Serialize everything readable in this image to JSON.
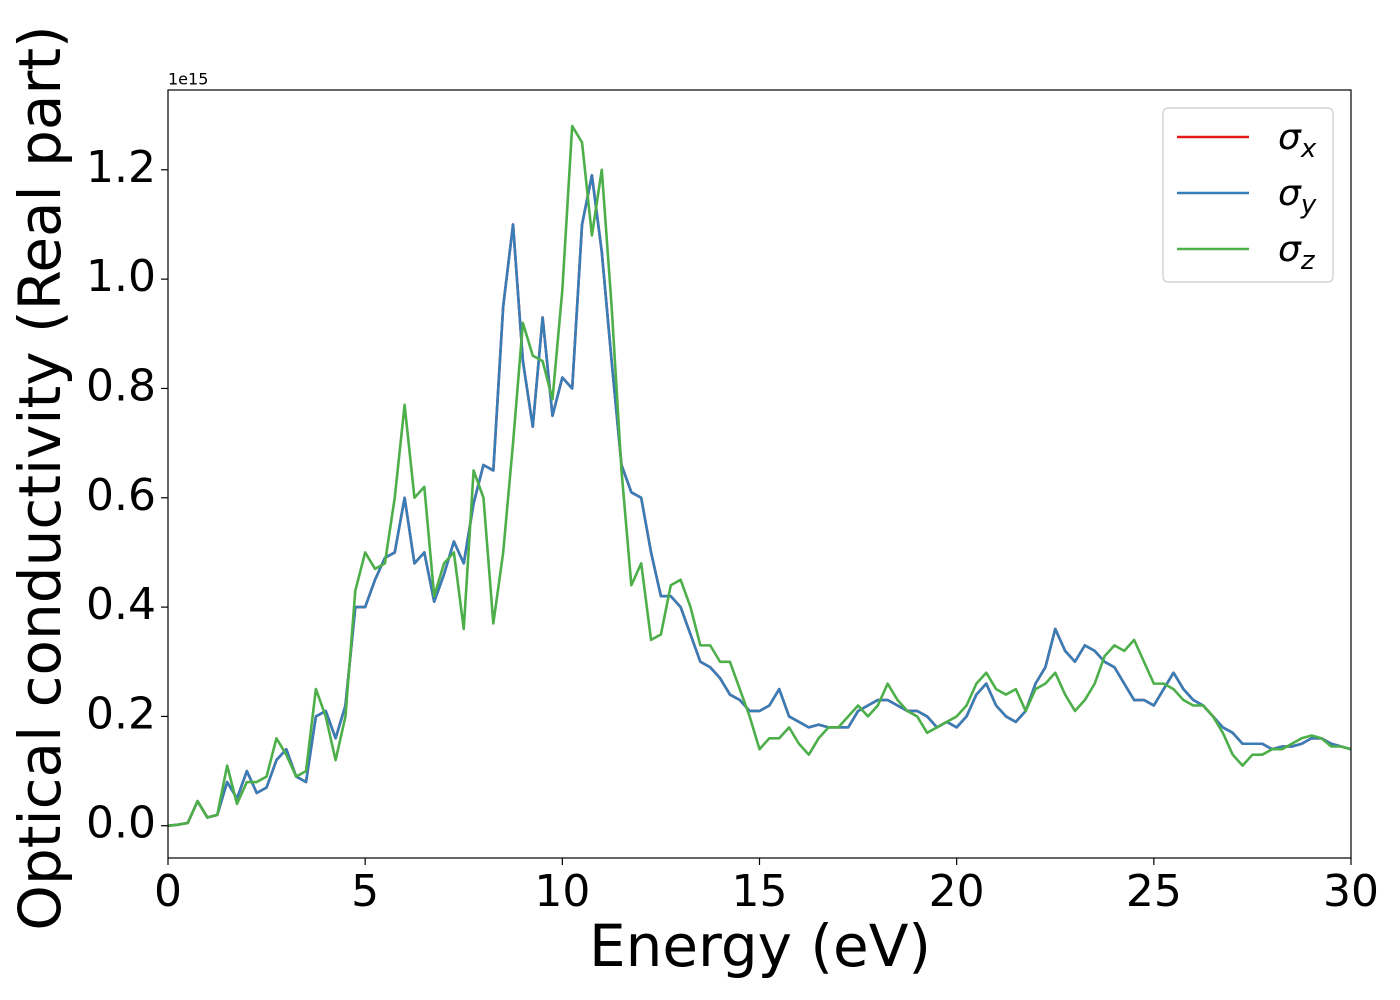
{
  "chart_data": {
    "type": "line",
    "xlabel": "Energy (eV)",
    "ylabel": "Optical conductivity (Real part)",
    "y_offset_label": "1e15",
    "x": [
      0,
      0.25,
      0.5,
      0.75,
      1,
      1.25,
      1.5,
      1.75,
      2,
      2.25,
      2.5,
      2.75,
      3,
      3.25,
      3.5,
      3.75,
      4,
      4.25,
      4.5,
      4.75,
      5,
      5.25,
      5.5,
      5.75,
      6,
      6.25,
      6.5,
      6.75,
      7,
      7.25,
      7.5,
      7.75,
      8,
      8.25,
      8.5,
      8.75,
      9,
      9.25,
      9.5,
      9.75,
      10,
      10.25,
      10.5,
      10.75,
      11,
      11.25,
      11.5,
      11.75,
      12,
      12.25,
      12.5,
      12.75,
      13,
      13.25,
      13.5,
      13.75,
      14,
      14.25,
      14.5,
      14.75,
      15,
      15.25,
      15.5,
      15.75,
      16,
      16.25,
      16.5,
      16.75,
      17,
      17.25,
      17.5,
      17.75,
      18,
      18.25,
      18.5,
      18.75,
      19,
      19.25,
      19.5,
      19.75,
      20,
      20.25,
      20.5,
      20.75,
      21,
      21.25,
      21.5,
      21.75,
      22,
      22.25,
      22.5,
      22.75,
      23,
      23.25,
      23.5,
      23.75,
      24,
      24.25,
      24.5,
      24.75,
      25,
      25.25,
      25.5,
      25.75,
      26,
      26.25,
      26.5,
      26.75,
      27,
      27.25,
      27.5,
      27.75,
      28,
      28.25,
      28.5,
      28.75,
      29,
      29.25,
      29.5,
      29.75,
      30
    ],
    "series": [
      {
        "name": "σx",
        "color": "#e41a1c",
        "values": [
          0,
          0.002,
          0.005,
          0.045,
          0.015,
          0.02,
          0.08,
          0.05,
          0.1,
          0.06,
          0.07,
          0.12,
          0.14,
          0.09,
          0.08,
          0.2,
          0.21,
          0.16,
          0.22,
          0.4,
          0.4,
          0.45,
          0.49,
          0.5,
          0.6,
          0.48,
          0.5,
          0.41,
          0.46,
          0.52,
          0.48,
          0.59,
          0.66,
          0.65,
          0.95,
          1.1,
          0.85,
          0.73,
          0.93,
          0.75,
          0.82,
          0.8,
          1.1,
          1.19,
          1.05,
          0.85,
          0.66,
          0.61,
          0.6,
          0.5,
          0.42,
          0.42,
          0.4,
          0.35,
          0.3,
          0.29,
          0.27,
          0.24,
          0.23,
          0.21,
          0.21,
          0.22,
          0.25,
          0.2,
          0.19,
          0.18,
          0.185,
          0.18,
          0.18,
          0.18,
          0.21,
          0.22,
          0.23,
          0.23,
          0.22,
          0.21,
          0.21,
          0.2,
          0.18,
          0.19,
          0.18,
          0.2,
          0.24,
          0.26,
          0.22,
          0.2,
          0.19,
          0.21,
          0.26,
          0.29,
          0.36,
          0.32,
          0.3,
          0.33,
          0.32,
          0.3,
          0.29,
          0.26,
          0.23,
          0.23,
          0.22,
          0.25,
          0.28,
          0.25,
          0.23,
          0.22,
          0.2,
          0.18,
          0.17,
          0.15,
          0.15,
          0.15,
          0.14,
          0.145,
          0.145,
          0.15,
          0.16,
          0.16,
          0.15,
          0.145,
          0.14
        ]
      },
      {
        "name": "σy",
        "color": "#377eb8",
        "values": [
          0,
          0.002,
          0.005,
          0.045,
          0.015,
          0.02,
          0.08,
          0.05,
          0.1,
          0.06,
          0.07,
          0.12,
          0.14,
          0.09,
          0.08,
          0.2,
          0.21,
          0.16,
          0.22,
          0.4,
          0.4,
          0.45,
          0.49,
          0.5,
          0.6,
          0.48,
          0.5,
          0.41,
          0.46,
          0.52,
          0.48,
          0.59,
          0.66,
          0.65,
          0.95,
          1.1,
          0.85,
          0.73,
          0.93,
          0.75,
          0.82,
          0.8,
          1.1,
          1.19,
          1.05,
          0.85,
          0.66,
          0.61,
          0.6,
          0.5,
          0.42,
          0.42,
          0.4,
          0.35,
          0.3,
          0.29,
          0.27,
          0.24,
          0.23,
          0.21,
          0.21,
          0.22,
          0.25,
          0.2,
          0.19,
          0.18,
          0.185,
          0.18,
          0.18,
          0.18,
          0.21,
          0.22,
          0.23,
          0.23,
          0.22,
          0.21,
          0.21,
          0.2,
          0.18,
          0.19,
          0.18,
          0.2,
          0.24,
          0.26,
          0.22,
          0.2,
          0.19,
          0.21,
          0.26,
          0.29,
          0.36,
          0.32,
          0.3,
          0.33,
          0.32,
          0.3,
          0.29,
          0.26,
          0.23,
          0.23,
          0.22,
          0.25,
          0.28,
          0.25,
          0.23,
          0.22,
          0.2,
          0.18,
          0.17,
          0.15,
          0.15,
          0.15,
          0.14,
          0.145,
          0.145,
          0.15,
          0.16,
          0.16,
          0.15,
          0.145,
          0.14
        ]
      },
      {
        "name": "σz",
        "color": "#4daf4a",
        "values": [
          0,
          0.002,
          0.005,
          0.045,
          0.015,
          0.02,
          0.11,
          0.04,
          0.08,
          0.08,
          0.09,
          0.16,
          0.13,
          0.09,
          0.1,
          0.25,
          0.2,
          0.12,
          0.2,
          0.43,
          0.5,
          0.47,
          0.48,
          0.6,
          0.77,
          0.6,
          0.62,
          0.42,
          0.48,
          0.5,
          0.36,
          0.65,
          0.6,
          0.37,
          0.5,
          0.7,
          0.92,
          0.86,
          0.85,
          0.78,
          0.98,
          1.28,
          1.25,
          1.08,
          1.2,
          0.95,
          0.65,
          0.44,
          0.48,
          0.34,
          0.35,
          0.44,
          0.45,
          0.4,
          0.33,
          0.33,
          0.3,
          0.3,
          0.25,
          0.2,
          0.14,
          0.16,
          0.16,
          0.18,
          0.15,
          0.13,
          0.16,
          0.18,
          0.18,
          0.2,
          0.22,
          0.2,
          0.22,
          0.26,
          0.23,
          0.21,
          0.2,
          0.17,
          0.18,
          0.19,
          0.2,
          0.22,
          0.26,
          0.28,
          0.25,
          0.24,
          0.25,
          0.21,
          0.25,
          0.26,
          0.28,
          0.24,
          0.21,
          0.23,
          0.26,
          0.31,
          0.33,
          0.32,
          0.34,
          0.3,
          0.26,
          0.26,
          0.25,
          0.23,
          0.22,
          0.22,
          0.2,
          0.17,
          0.13,
          0.11,
          0.13,
          0.13,
          0.14,
          0.14,
          0.15,
          0.16,
          0.165,
          0.16,
          0.145,
          0.145,
          0.14
        ]
      }
    ],
    "xlim": [
      0,
      30
    ],
    "xticks": [
      0,
      5,
      10,
      15,
      20,
      25,
      30
    ],
    "ylim": [
      -0.059,
      1.346
    ],
    "yticks": [
      {
        "value": 0,
        "label": "0.0"
      },
      0.2,
      0.4,
      0.6,
      0.8,
      {
        "value": 1,
        "label": "1.0"
      },
      1.2
    ],
    "legend": "upper right",
    "grid": false
  }
}
